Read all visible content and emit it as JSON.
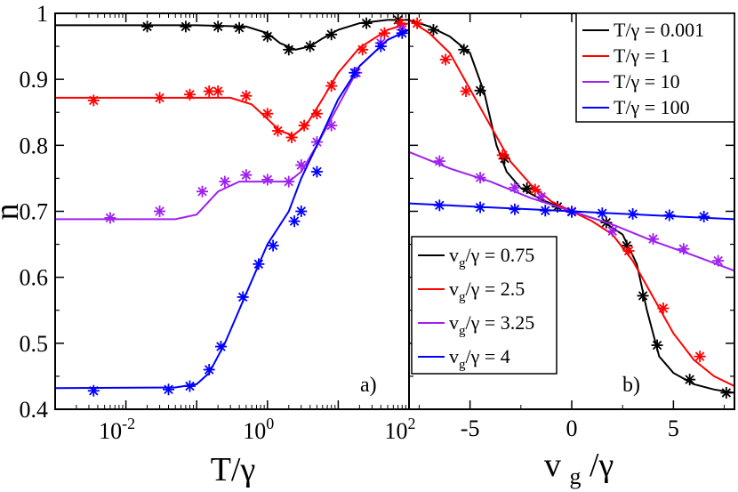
{
  "chart_data": [
    {
      "type": "line",
      "panel_label": "a)",
      "xlabel": "T/γ",
      "ylabel": "n",
      "xscale": "log",
      "xlim": [
        0.001,
        100
      ],
      "ylim": [
        0.4,
        1.0
      ],
      "xticks": [
        {
          "value": 0.01,
          "base": "10",
          "exp": "-2"
        },
        {
          "value": 1,
          "base": "10",
          "exp": "0"
        },
        {
          "value": 100,
          "base": "10",
          "exp": "2"
        }
      ],
      "yticks": [
        {
          "value": 0.4,
          "label": "0.4"
        },
        {
          "value": 0.5,
          "label": "0.5"
        },
        {
          "value": 0.6,
          "label": "0.6"
        },
        {
          "value": 0.7,
          "label": "0.7"
        },
        {
          "value": 0.8,
          "label": "0.8"
        },
        {
          "value": 0.9,
          "label": "0.9"
        },
        {
          "value": 1.0,
          "label": "1"
        }
      ],
      "legend": {
        "position": "bottom-right of panel b",
        "entries": [
          {
            "name": "v",
            "sub": "g",
            "rest": "/γ = 0.75",
            "color": "#000000"
          },
          {
            "name": "v",
            "sub": "g",
            "rest": "/γ = 2.5",
            "color": "#ff0000"
          },
          {
            "name": "v",
            "sub": "g",
            "rest": "/γ = 3.25",
            "color": "#a020f0"
          },
          {
            "name": "v",
            "sub": "g",
            "rest": "/γ = 4",
            "color": "#0000ff"
          }
        ]
      },
      "series": [
        {
          "name": "vg/γ = 0.75",
          "color": "#000000",
          "line": [
            [
              0.001,
              0.982
            ],
            [
              0.1,
              0.982
            ],
            [
              0.5,
              0.98
            ],
            [
              1,
              0.97
            ],
            [
              1.5,
              0.955
            ],
            [
              2.5,
              0.945
            ],
            [
              4,
              0.95
            ],
            [
              6,
              0.962
            ],
            [
              10,
              0.975
            ],
            [
              20,
              0.985
            ],
            [
              50,
              0.99
            ],
            [
              100,
              0.99
            ]
          ],
          "points": [
            [
              0.02,
              0.98
            ],
            [
              0.07,
              0.98
            ],
            [
              0.2,
              0.98
            ],
            [
              0.4,
              0.978
            ],
            [
              1,
              0.965
            ],
            [
              2,
              0.945
            ],
            [
              4,
              0.95
            ],
            [
              8,
              0.968
            ],
            [
              25,
              0.985
            ],
            [
              70,
              0.99
            ]
          ]
        },
        {
          "name": "vg/γ = 2.5",
          "color": "#ff0000",
          "line": [
            [
              0.001,
              0.872
            ],
            [
              0.1,
              0.872
            ],
            [
              0.3,
              0.872
            ],
            [
              0.6,
              0.862
            ],
            [
              1,
              0.84
            ],
            [
              1.5,
              0.822
            ],
            [
              2.3,
              0.815
            ],
            [
              3.5,
              0.83
            ],
            [
              6,
              0.87
            ],
            [
              10,
              0.91
            ],
            [
              20,
              0.948
            ],
            [
              50,
              0.975
            ],
            [
              100,
              0.985
            ]
          ],
          "points": [
            [
              0.0035,
              0.868
            ],
            [
              0.03,
              0.872
            ],
            [
              0.08,
              0.877
            ],
            [
              0.15,
              0.882
            ],
            [
              0.2,
              0.882
            ],
            [
              0.5,
              0.875
            ],
            [
              1,
              0.848
            ],
            [
              1.4,
              0.822
            ],
            [
              2.2,
              0.812
            ],
            [
              3.3,
              0.83
            ],
            [
              5,
              0.848
            ],
            [
              8,
              0.89
            ],
            [
              22,
              0.945
            ],
            [
              45,
              0.97
            ],
            [
              75,
              0.985
            ]
          ]
        },
        {
          "name": "vg/γ = 3.25",
          "color": "#a020f0",
          "line": [
            [
              0.001,
              0.688
            ],
            [
              0.05,
              0.688
            ],
            [
              0.1,
              0.695
            ],
            [
              0.2,
              0.73
            ],
            [
              0.4,
              0.745
            ],
            [
              0.8,
              0.745
            ],
            [
              2,
              0.745
            ],
            [
              3,
              0.76
            ],
            [
              5,
              0.8
            ],
            [
              10,
              0.86
            ],
            [
              20,
              0.92
            ],
            [
              50,
              0.96
            ],
            [
              100,
              0.975
            ]
          ],
          "points": [
            [
              0.006,
              0.69
            ],
            [
              0.03,
              0.7
            ],
            [
              0.12,
              0.73
            ],
            [
              0.25,
              0.745
            ],
            [
              0.5,
              0.755
            ],
            [
              1,
              0.748
            ],
            [
              2,
              0.745
            ],
            [
              3,
              0.77
            ],
            [
              5,
              0.805
            ],
            [
              8,
              0.83
            ],
            [
              18,
              0.91
            ],
            [
              40,
              0.955
            ],
            [
              80,
              0.975
            ]
          ]
        },
        {
          "name": "vg/γ = 4",
          "color": "#0000ff",
          "line": [
            [
              0.001,
              0.432
            ],
            [
              0.05,
              0.433
            ],
            [
              0.1,
              0.438
            ],
            [
              0.15,
              0.455
            ],
            [
              0.25,
              0.5
            ],
            [
              0.5,
              0.575
            ],
            [
              1,
              0.65
            ],
            [
              2,
              0.7
            ],
            [
              3,
              0.75
            ],
            [
              5,
              0.8
            ],
            [
              10,
              0.87
            ],
            [
              20,
              0.92
            ],
            [
              50,
              0.96
            ],
            [
              100,
              0.975
            ]
          ],
          "points": [
            [
              0.0035,
              0.428
            ],
            [
              0.04,
              0.43
            ],
            [
              0.08,
              0.435
            ],
            [
              0.15,
              0.46
            ],
            [
              0.22,
              0.495
            ],
            [
              0.45,
              0.57
            ],
            [
              0.75,
              0.62
            ],
            [
              1.2,
              0.648
            ],
            [
              2.4,
              0.685
            ],
            [
              3,
              0.7
            ],
            [
              5,
              0.76
            ],
            [
              17,
              0.91
            ],
            [
              40,
              0.95
            ],
            [
              80,
              0.97
            ]
          ]
        }
      ]
    },
    {
      "type": "line",
      "panel_label": "b)",
      "xlabel": "v",
      "xlabel_sub": "g",
      "xlabel_rest": "/γ",
      "xlim": [
        -8,
        8
      ],
      "ylim": [
        0.4,
        1.0
      ],
      "xticks": [
        {
          "value": -5,
          "label": "-5"
        },
        {
          "value": 0,
          "label": "0"
        },
        {
          "value": 5,
          "label": "5"
        }
      ],
      "legend": {
        "position": "top-right",
        "entries": [
          {
            "label": "T/γ = 0.001",
            "color": "#000000"
          },
          {
            "label": "T/γ = 1",
            "color": "#ff0000"
          },
          {
            "label": "T/γ = 10",
            "color": "#a020f0"
          },
          {
            "label": "T/γ = 100",
            "color": "#0000ff"
          }
        ]
      },
      "series": [
        {
          "name": "T/γ = 0.001",
          "color": "#000000",
          "line": [
            [
              -8,
              0.99
            ],
            [
              -7,
              0.98
            ],
            [
              -6,
              0.965
            ],
            [
              -5,
              0.94
            ],
            [
              -4.3,
              0.88
            ],
            [
              -3.7,
              0.8
            ],
            [
              -3.2,
              0.76
            ],
            [
              -2.5,
              0.735
            ],
            [
              -1.5,
              0.718
            ],
            [
              -0.5,
              0.705
            ],
            [
              0,
              0.7
            ],
            [
              0.5,
              0.695
            ],
            [
              1.5,
              0.685
            ],
            [
              2.5,
              0.665
            ],
            [
              3.2,
              0.62
            ],
            [
              3.7,
              0.55
            ],
            [
              4.3,
              0.48
            ],
            [
              5,
              0.455
            ],
            [
              6,
              0.438
            ],
            [
              7,
              0.43
            ],
            [
              8,
              0.425
            ]
          ],
          "points": [
            [
              -6.8,
              0.975
            ],
            [
              -5.3,
              0.945
            ],
            [
              -4.5,
              0.883
            ],
            [
              -3.3,
              0.78
            ],
            [
              -2.2,
              0.735
            ],
            [
              -0.7,
              0.707
            ],
            [
              1.7,
              0.683
            ],
            [
              2.7,
              0.648
            ],
            [
              3.5,
              0.572
            ],
            [
              4.2,
              0.497
            ],
            [
              5.8,
              0.445
            ],
            [
              7.6,
              0.425
            ]
          ]
        },
        {
          "name": "T/γ = 1",
          "color": "#ff0000",
          "line": [
            [
              -8,
              0.99
            ],
            [
              -7,
              0.97
            ],
            [
              -6,
              0.94
            ],
            [
              -5,
              0.885
            ],
            [
              -4,
              0.83
            ],
            [
              -3,
              0.775
            ],
            [
              -2,
              0.74
            ],
            [
              -1,
              0.715
            ],
            [
              0,
              0.7
            ],
            [
              1,
              0.685
            ],
            [
              2,
              0.665
            ],
            [
              3,
              0.625
            ],
            [
              4,
              0.57
            ],
            [
              5,
              0.515
            ],
            [
              6,
              0.475
            ],
            [
              7,
              0.45
            ],
            [
              8,
              0.435
            ]
          ],
          "points": [
            [
              -7.6,
              0.985
            ],
            [
              -6.2,
              0.93
            ],
            [
              -5.2,
              0.882
            ],
            [
              -3.4,
              0.785
            ],
            [
              -1.8,
              0.733
            ],
            [
              2.8,
              0.64
            ],
            [
              4.5,
              0.553
            ],
            [
              6.3,
              0.48
            ]
          ]
        },
        {
          "name": "T/γ = 10",
          "color": "#a020f0",
          "line": [
            [
              -8,
              0.79
            ],
            [
              -6,
              0.765
            ],
            [
              -4,
              0.745
            ],
            [
              -2,
              0.72
            ],
            [
              0,
              0.7
            ],
            [
              2,
              0.68
            ],
            [
              4,
              0.655
            ],
            [
              6,
              0.633
            ],
            [
              8,
              0.61
            ]
          ],
          "points": [
            [
              -6.5,
              0.776
            ],
            [
              -4.5,
              0.751
            ],
            [
              -2.8,
              0.736
            ],
            [
              -1.5,
              0.722
            ],
            [
              0,
              0.7
            ],
            [
              2,
              0.67
            ],
            [
              4,
              0.658
            ],
            [
              5.5,
              0.643
            ],
            [
              7.2,
              0.625
            ]
          ]
        },
        {
          "name": "T/γ = 100",
          "color": "#0000ff",
          "line": [
            [
              -8,
              0.712
            ],
            [
              -4,
              0.706
            ],
            [
              0,
              0.7
            ],
            [
              4,
              0.694
            ],
            [
              8,
              0.688
            ]
          ],
          "points": [
            [
              -6.5,
              0.709
            ],
            [
              -4.5,
              0.706
            ],
            [
              -2.8,
              0.703
            ],
            [
              -1.3,
              0.701
            ],
            [
              0,
              0.699
            ],
            [
              1.5,
              0.697
            ],
            [
              3,
              0.696
            ],
            [
              4.8,
              0.694
            ],
            [
              6.5,
              0.692
            ]
          ]
        }
      ]
    }
  ]
}
